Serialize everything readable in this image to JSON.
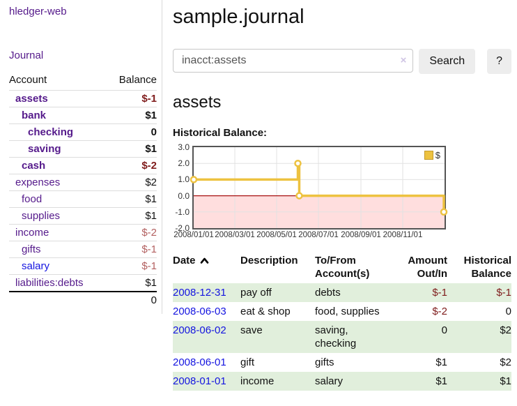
{
  "colors": {
    "purple": "#551a8b",
    "blue": "#1414e0",
    "neg-strong": "#7f1c1c",
    "neg-muted": "#b36060",
    "stripe": "#e1efdc",
    "gold": "#edc240"
  },
  "app": {
    "brand": "hledger-web",
    "nav_journal": "Journal"
  },
  "sidebar": {
    "header": {
      "account": "Account",
      "balance": "Balance"
    },
    "accounts": [
      {
        "name": "assets",
        "balance": "$-1",
        "depth": 1,
        "emphasis": true,
        "negative": true
      },
      {
        "name": "bank",
        "balance": "$1",
        "depth": 2,
        "emphasis": true
      },
      {
        "name": "checking",
        "balance": "0",
        "depth": 3,
        "emphasis": true
      },
      {
        "name": "saving",
        "balance": "$1",
        "depth": 3,
        "emphasis": true
      },
      {
        "name": "cash",
        "balance": "$-2",
        "depth": 2,
        "emphasis": true,
        "negative": true
      },
      {
        "name": "expenses",
        "balance": "$2",
        "depth": 1
      },
      {
        "name": "food",
        "balance": "$1",
        "depth": 2
      },
      {
        "name": "supplies",
        "balance": "$1",
        "depth": 2
      },
      {
        "name": "income",
        "balance": "$-2",
        "depth": 1,
        "negative": true,
        "muted": true
      },
      {
        "name": "gifts",
        "balance": "$-1",
        "depth": 2,
        "negative": true,
        "muted": true
      },
      {
        "name": "salary",
        "balance": "$-1",
        "depth": 2,
        "negative": true,
        "muted": true,
        "unvisited": true
      },
      {
        "name": "liabilities:debts",
        "balance": "$1",
        "depth": 1
      }
    ],
    "total": "0"
  },
  "header": {
    "title": "sample.journal"
  },
  "search": {
    "value": "inacct:assets",
    "clear_label": "×",
    "button_label": "Search",
    "help_label": "?"
  },
  "account_page": {
    "heading": "assets",
    "chart_label": "Historical Balance:"
  },
  "chart_data": {
    "type": "line",
    "step": true,
    "title": "Historical Balance:",
    "series": [
      {
        "name": "$",
        "color": "#edc240",
        "points": [
          [
            "2008-01-01",
            1
          ],
          [
            "2008-06-01",
            2
          ],
          [
            "2008-06-03",
            0
          ],
          [
            "2008-12-31",
            -1
          ]
        ]
      }
    ],
    "xlim": [
      "2008-01-01",
      "2009-01-01"
    ],
    "ylim": [
      -2,
      3
    ],
    "xticks": [
      "2008/01/01",
      "2008/03/01",
      "2008/05/01",
      "2008/07/01",
      "2008/09/01",
      "2008/11/01"
    ],
    "yticks": [
      "3.0",
      "2.0",
      "1.0",
      "0.0",
      "-1.0",
      "-2.0"
    ],
    "grid": true,
    "legend": {
      "position": "top-right",
      "label": "$"
    },
    "negative_region_color": "#ffdede",
    "zero_line_color": "#a81212",
    "grid_color": "#e2e2e2"
  },
  "register": {
    "columns": [
      {
        "lines": [
          "Date"
        ],
        "sorted": "asc"
      },
      {
        "lines": [
          "Description"
        ]
      },
      {
        "lines": [
          "To/From",
          "Account(s)"
        ]
      },
      {
        "lines": [
          "Amount",
          "Out/In"
        ],
        "align": "right"
      },
      {
        "lines": [
          "Historical",
          "Balance"
        ],
        "align": "right"
      }
    ],
    "rows": [
      {
        "date": "2008-12-31",
        "description": "pay off",
        "accounts": "debts",
        "amount": "$-1",
        "amount_negative": true,
        "balance": "$-1",
        "balance_negative": true
      },
      {
        "date": "2008-06-03",
        "description": "eat & shop",
        "accounts": "food, supplies",
        "amount": "$-2",
        "amount_negative": true,
        "balance": "0"
      },
      {
        "date": "2008-06-02",
        "description": "save",
        "accounts": "saving, checking",
        "amount": "0",
        "balance": "$2"
      },
      {
        "date": "2008-06-01",
        "description": "gift",
        "accounts": "gifts",
        "amount": "$1",
        "balance": "$2"
      },
      {
        "date": "2008-01-01",
        "description": "income",
        "accounts": "salary",
        "amount": "$1",
        "balance": "$1"
      }
    ]
  }
}
